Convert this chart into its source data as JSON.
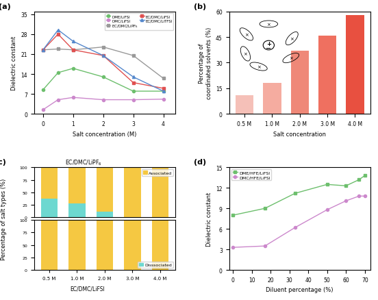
{
  "panel_a": {
    "xlabel": "Salt concentration (M)",
    "ylabel": "Dielectric constant",
    "x": [
      0,
      0.5,
      1,
      2,
      3,
      4
    ],
    "series_order": [
      "DME/LiFSI",
      "DMC/LiFSI",
      "EC/DMC/LiPF$_6$",
      "EC/DMC/LiFSI",
      "EC/DMC/LiTFSI"
    ],
    "series": {
      "DME/LiFSI": {
        "y": [
          8.5,
          14.5,
          16.0,
          13.0,
          8.0,
          8.0
        ],
        "color": "#6dbf6d",
        "marker": "o"
      },
      "DMC/LiFSI": {
        "y": [
          1.5,
          5.0,
          5.8,
          5.0,
          5.0,
          5.2
        ],
        "color": "#cc88cc",
        "marker": "o"
      },
      "EC/DMC/LiPF$_6$": {
        "y": [
          22.5,
          22.8,
          22.5,
          23.5,
          20.5,
          12.5
        ],
        "color": "#999999",
        "marker": "s"
      },
      "EC/DMC/LiFSI": {
        "y": [
          22.5,
          28.0,
          22.5,
          20.5,
          11.0,
          9.0
        ],
        "color": "#e05050",
        "marker": "s"
      },
      "EC/DMC/LiTFSI": {
        "y": [
          22.5,
          29.5,
          25.5,
          20.5,
          13.0,
          8.0
        ],
        "color": "#5588cc",
        "marker": "^"
      }
    },
    "ylim": [
      0,
      36
    ],
    "yticks": [
      0,
      7,
      14,
      21,
      28,
      35
    ],
    "xticks": [
      0,
      1,
      2,
      3,
      4
    ]
  },
  "panel_b": {
    "xlabel": "Salt concentration",
    "ylabel": "Percentage of\ncoordinated solvents (%)",
    "categories": [
      "0.5 M",
      "1.0 M",
      "2.0 M",
      "3.0 M",
      "4.0 M"
    ],
    "values": [
      11,
      18,
      37,
      46,
      58
    ],
    "colors": [
      "#f5c0b8",
      "#f5aca0",
      "#ef8878",
      "#ef7060",
      "#e85040"
    ],
    "ylim": [
      0,
      60
    ],
    "yticks": [
      0,
      15,
      30,
      45,
      60
    ]
  },
  "panel_c": {
    "ylabel": "Percentage of salt types (%)",
    "categories": [
      "0.5 M",
      "1.0 M",
      "2.0 M",
      "3.0 M",
      "4.0 M"
    ],
    "ec_dmc_lipf6_dissociated": [
      38,
      28,
      12,
      0,
      0
    ],
    "ec_dmc_lifsi_dissociated": [
      0,
      0,
      0,
      0,
      0
    ],
    "associated_color": "#f5c842",
    "dissociated_color": "#6dd8d0",
    "label_top": "EC/DMC/LiPF$_6$",
    "label_bottom": "EC/DMC/LiFSI",
    "legend_associated": "Associated",
    "legend_dissociated": "Disssociated"
  },
  "panel_d": {
    "xlabel": "Diluent percentage (%)",
    "ylabel": "Dielectric constant",
    "x": [
      0,
      17,
      33,
      50,
      60,
      67,
      70
    ],
    "series_order": [
      "DME/HFE/LiFSI",
      "DMC/HFE/LiFSI"
    ],
    "series": {
      "DME/HFE/LiFSI": {
        "y": [
          8.0,
          9.0,
          11.2,
          12.5,
          12.3,
          13.2,
          13.8
        ],
        "color": "#6dbf6d",
        "marker": "s"
      },
      "DMC/HFE/LiFSI": {
        "y": [
          3.3,
          3.5,
          6.2,
          8.8,
          10.1,
          10.8,
          10.8
        ],
        "color": "#cc88cc",
        "marker": "o"
      }
    },
    "ylim": [
      0,
      15
    ],
    "yticks": [
      0,
      3,
      6,
      9,
      12,
      15
    ],
    "xticks": [
      0,
      10,
      20,
      30,
      40,
      50,
      60,
      70
    ]
  }
}
